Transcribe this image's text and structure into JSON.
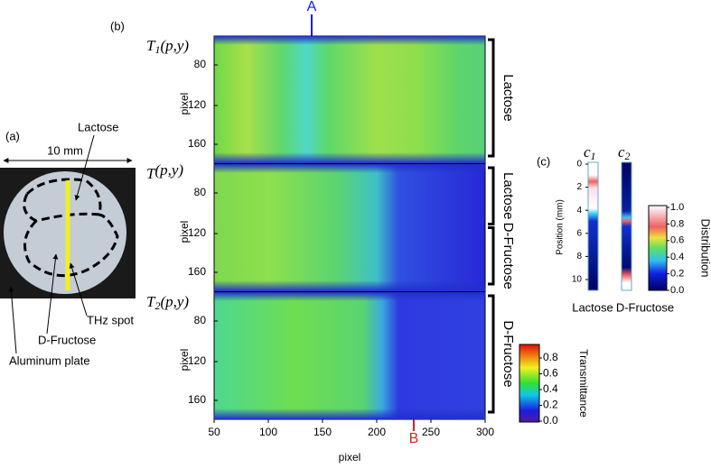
{
  "panel_a": {
    "label": "(a)",
    "scale_label": "10 mm",
    "lactose": "Lactose",
    "thz_spot": "THz spot",
    "fructose": "D-Fructose",
    "plate": "Aluminum plate"
  },
  "panel_b": {
    "label": "(b)",
    "marker_a": "A",
    "marker_b": "B",
    "maps": [
      {
        "symbol": "T",
        "subscript": "1",
        "args": "(p,y)",
        "y_axis_label": "pixel",
        "yticks": [
          "80",
          "120",
          "160"
        ],
        "brackets": [
          "Lactose"
        ]
      },
      {
        "symbol": "T",
        "subscript": "",
        "args": "(p,y)",
        "y_axis_label": "pixel",
        "yticks": [
          "80",
          "120",
          "160"
        ],
        "brackets": [
          "Lactose",
          "D-Fructose"
        ]
      },
      {
        "symbol": "T",
        "subscript": "2",
        "args": "(p,y)",
        "y_axis_label": "pixel",
        "yticks": [
          "80",
          "120",
          "160"
        ],
        "brackets": [
          "D-Fructose"
        ]
      }
    ],
    "x_axis_label": "pixel",
    "xticks": [
      "50",
      "100",
      "150",
      "200",
      "250",
      "300"
    ],
    "colorbar": {
      "label": "Transmittance",
      "ticks": [
        "0.0",
        "0.2",
        "0.4",
        "0.6",
        "0.8"
      ]
    }
  },
  "panel_c": {
    "label": "(c)",
    "c1": "c",
    "c1_sub": "1",
    "c2": "c",
    "c2_sub": "2",
    "y_axis_label": "Position (mm)",
    "yticks": [
      "0",
      "2",
      "4",
      "6",
      "8",
      "10"
    ],
    "lactose": "Lactose",
    "fructose": "D-Fructose",
    "colorbar": {
      "label": "Distribution",
      "ticks": [
        "0.0",
        "0.2",
        "0.4",
        "0.6",
        "0.8",
        "1.0"
      ]
    }
  }
}
